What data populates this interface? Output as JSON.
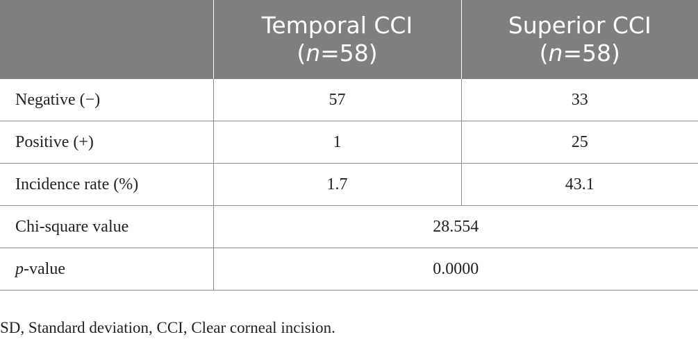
{
  "table": {
    "headers": [
      {
        "line1": "",
        "n_label": "",
        "n_value": ""
      },
      {
        "line1": "Temporal CCI",
        "n_label": "n",
        "n_value": "=58)"
      },
      {
        "line1": "Superior CCI",
        "n_label": "n",
        "n_value": "=58)"
      }
    ],
    "rows": [
      {
        "label": "Negative (−)",
        "values": [
          "57",
          "33"
        ]
      },
      {
        "label": "Positive (+)",
        "values": [
          "1",
          "25"
        ]
      },
      {
        "label": "Incidence rate (%)",
        "values": [
          "1.7",
          "43.1"
        ]
      },
      {
        "label": "Chi-square value",
        "merged_value": "28.554"
      },
      {
        "label_italic": "p",
        "label_rest": "-value",
        "merged_value": "0.0000"
      }
    ]
  },
  "footnote": "SD, Standard deviation, CCI, Clear corneal incision."
}
